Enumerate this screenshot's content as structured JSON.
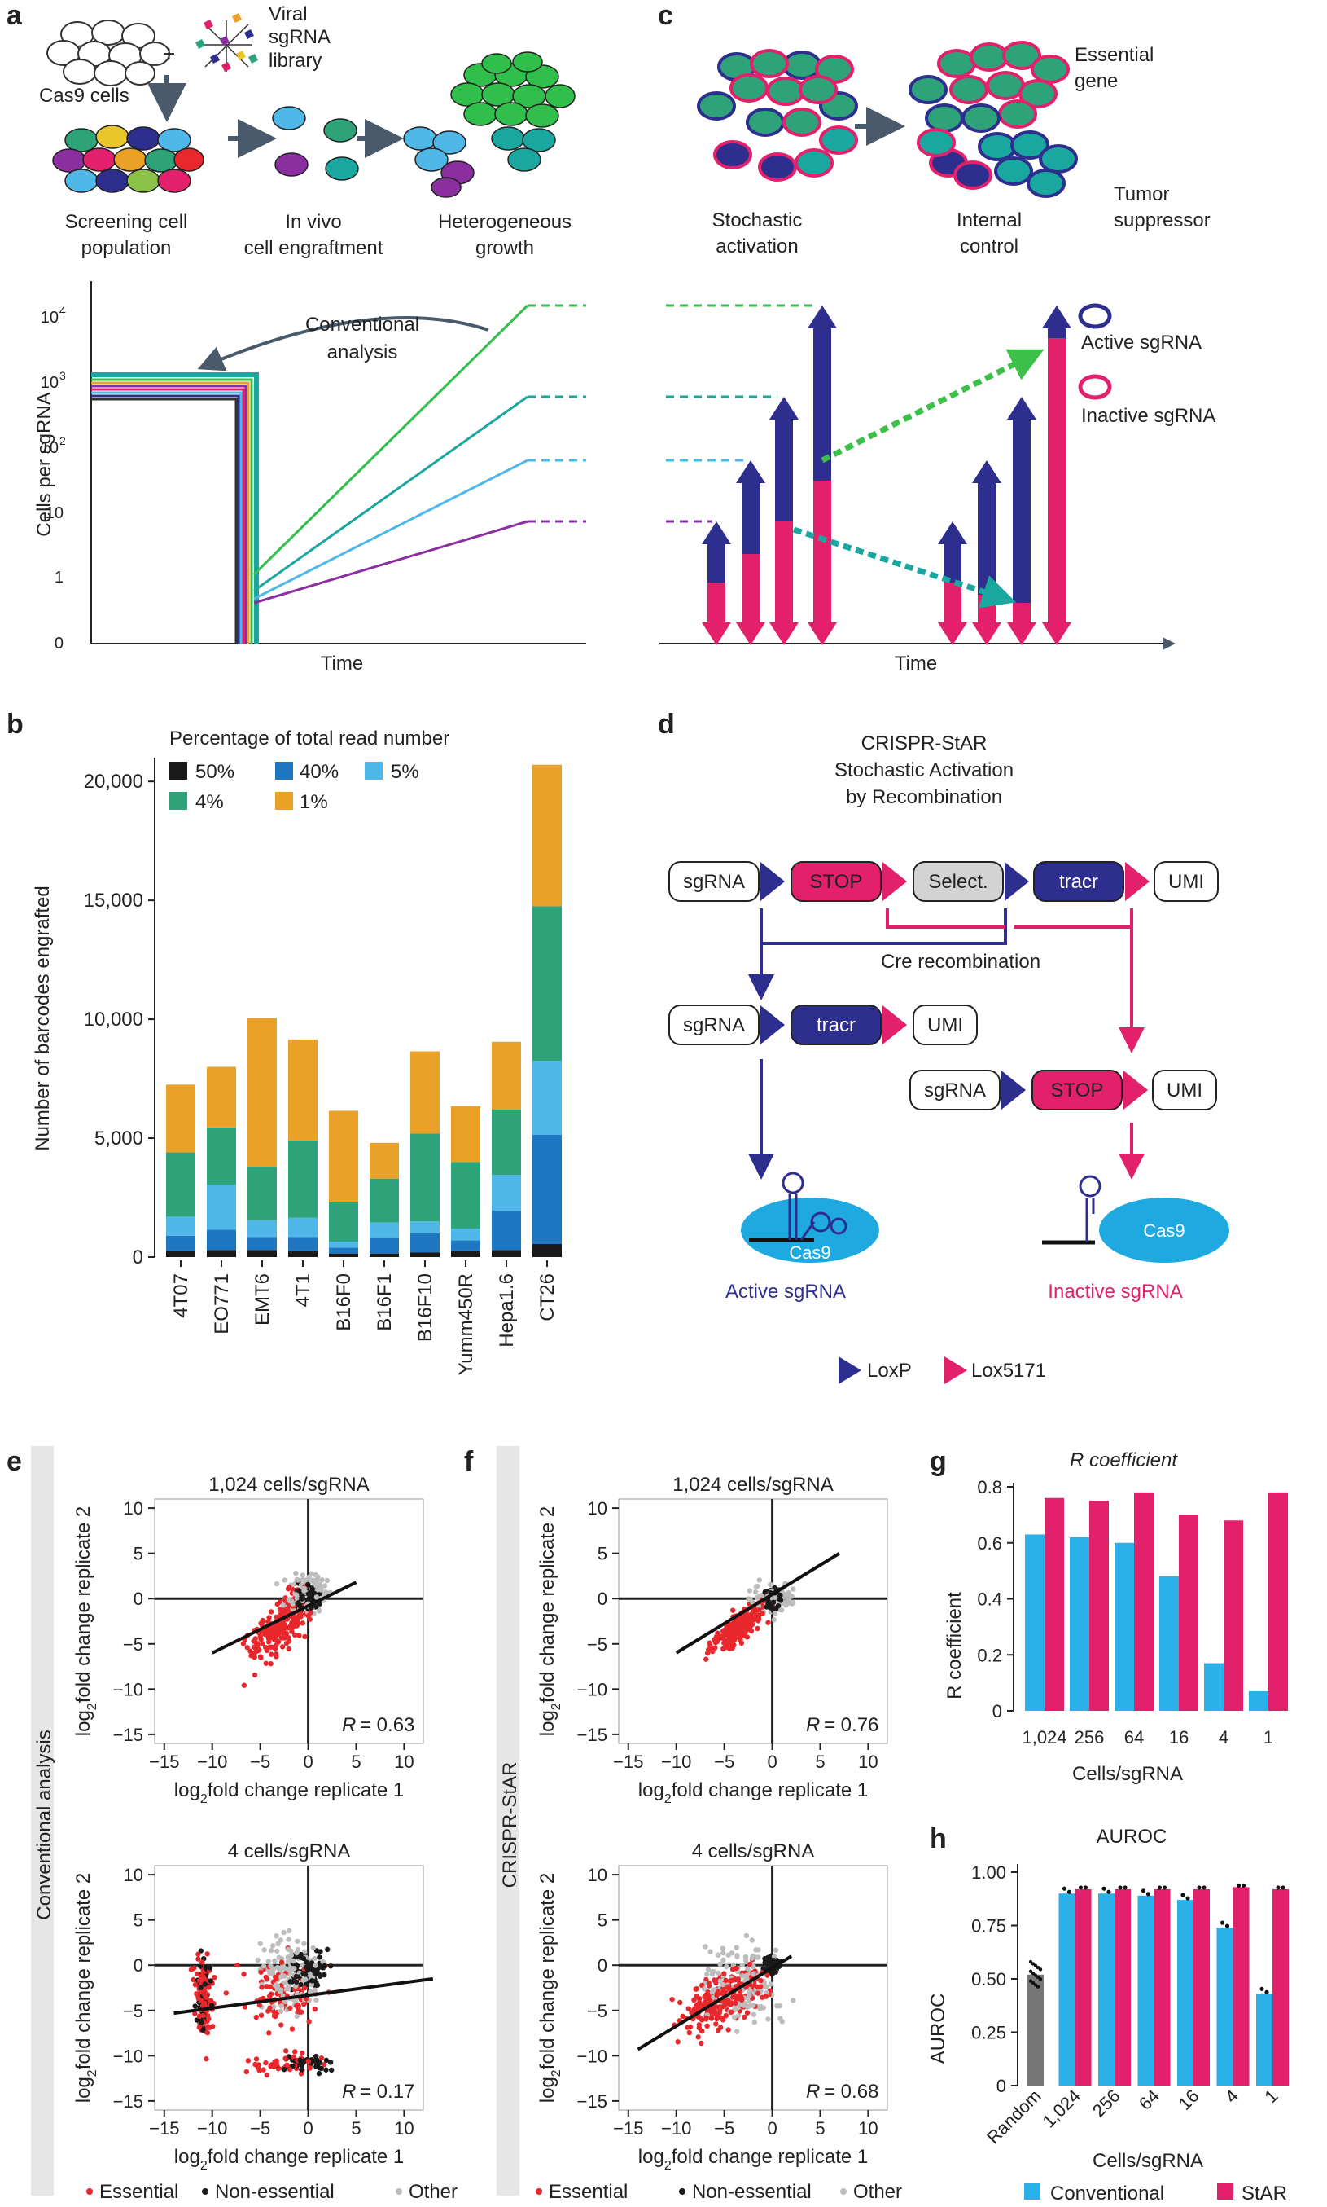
{
  "panel_letters": [
    "a",
    "b",
    "c",
    "d",
    "e",
    "f",
    "g",
    "h"
  ],
  "colors": {
    "navy": "#2e2e8f",
    "pink": "#e3206b",
    "green": "#2ea37a",
    "orange": "#e9a127",
    "lightblue": "#4fb8e8",
    "blue": "#1f77c2",
    "black": "#1a1a1a",
    "grey": "#bdbdbd",
    "red": "#e8282c"
  },
  "a": {
    "cas9_cells": "Cas9 cells",
    "plus": "+",
    "library": [
      "Viral",
      "sgRNA",
      "library"
    ],
    "screening": [
      "Screening cell",
      "population"
    ],
    "engraft": [
      "In vivo",
      "cell engraftment"
    ],
    "growth": [
      "Heterogeneous",
      "growth"
    ],
    "ylabel": "Cells per sgRNA",
    "xlabel": "Time",
    "yticks": [
      "0",
      "1",
      "10",
      "10",
      "10",
      "10"
    ],
    "yexp": [
      "",
      "",
      "",
      "2",
      "3",
      "4"
    ],
    "annot": [
      "Conventional",
      "analysis"
    ]
  },
  "c": {
    "stochastic": [
      "Stochastic",
      "activation"
    ],
    "internal": [
      "Internal",
      "control"
    ],
    "essential": [
      "Essential",
      "gene"
    ],
    "tumor": [
      "Tumor",
      "suppressor"
    ],
    "active": "Active sgRNA",
    "inactive": "Inactive sgRNA",
    "xlabel": "Time"
  },
  "b": {
    "legend_title": "Percentage of total read number",
    "legend": [
      "50%",
      "40%",
      "5%",
      "4%",
      "1%"
    ],
    "ylabel": "Number of barcodes engrafted",
    "yticks": [
      "0",
      "5,000",
      "10,000",
      "15,000",
      "20,000"
    ]
  },
  "chart_data": [
    {
      "type": "bar",
      "stacked": true,
      "categories": [
        "4T07",
        "EO771",
        "EMT6",
        "4T1",
        "B16F0",
        "B16F1",
        "B16F10",
        "Yumm450R",
        "Hepa1.6",
        "CT26"
      ],
      "series": [
        {
          "name": "50%",
          "values": [
            250,
            300,
            300,
            250,
            150,
            150,
            200,
            250,
            300,
            550
          ]
        },
        {
          "name": "40%",
          "values": [
            650,
            850,
            550,
            600,
            250,
            650,
            800,
            450,
            1650,
            4600
          ]
        },
        {
          "name": "5%",
          "values": [
            800,
            1900,
            700,
            800,
            250,
            650,
            500,
            500,
            1500,
            3100
          ]
        },
        {
          "name": "4%",
          "values": [
            2700,
            2400,
            2250,
            3250,
            1650,
            1850,
            3700,
            2800,
            2750,
            6500
          ]
        },
        {
          "name": "1%",
          "values": [
            2850,
            2550,
            6250,
            4250,
            3850,
            1500,
            3450,
            2350,
            2850,
            5950
          ]
        }
      ],
      "ylabel": "Number of barcodes engrafted",
      "ylim": [
        0,
        21000
      ]
    },
    {
      "type": "bar",
      "title": "R coefficient",
      "categories": [
        "1,024",
        "256",
        "64",
        "16",
        "4",
        "1"
      ],
      "series": [
        {
          "name": "Conventional",
          "values": [
            0.63,
            0.62,
            0.6,
            0.48,
            0.17,
            0.07
          ]
        },
        {
          "name": "StAR",
          "values": [
            0.76,
            0.75,
            0.78,
            0.7,
            0.68,
            0.78
          ]
        }
      ],
      "xlabel": "Cells/sgRNA",
      "ylabel": "R coefficient",
      "ylim": [
        0,
        0.8
      ]
    },
    {
      "type": "bar",
      "title": "AUROC",
      "categories": [
        "Random",
        "1,024",
        "256",
        "64",
        "16",
        "4",
        "1"
      ],
      "series": [
        {
          "name": "Random",
          "values": [
            0.52,
            null,
            null,
            null,
            null,
            null,
            null
          ]
        },
        {
          "name": "Conventional",
          "values": [
            null,
            0.9,
            0.9,
            0.89,
            0.87,
            0.74,
            0.43
          ]
        },
        {
          "name": "StAR",
          "values": [
            null,
            0.92,
            0.92,
            0.92,
            0.92,
            0.93,
            0.92
          ]
        }
      ],
      "xlabel": "Cells/sgRNA",
      "ylabel": "AUROC",
      "ylim": [
        0,
        1.0
      ]
    }
  ],
  "d": {
    "title": [
      "CRISPR-StAR",
      "Stochastic Activation",
      "by Recombination"
    ],
    "sgrna": "sgRNA",
    "stop": "STOP",
    "select": "Select.",
    "tracr": "tracr",
    "umi": "UMI",
    "cre": "Cre recombination",
    "cas9": "Cas9",
    "active": "Active sgRNA",
    "inactive": "Inactive sgRNA",
    "loxp": "LoxP",
    "lox5171": "Lox5171"
  },
  "e": {
    "side": "Conventional analysis",
    "top_title": "1,024 cells/sgRNA",
    "top_r": "= 0.63",
    "bot_title": "4 cells/sgRNA",
    "bot_r": "= 0.17"
  },
  "f": {
    "side": "CRISPR-StAR",
    "top_title": "1,024 cells/sgRNA",
    "top_r": "= 0.76",
    "bot_title": "4 cells/sgRNA",
    "bot_r": "= 0.68"
  },
  "scatter": {
    "ylab_main": "log",
    "ylab_sub": "2",
    "ylab_rest": "fold change replicate 2",
    "xlab_main": "log",
    "xlab_sub": "2",
    "xlab_rest": "fold change replicate 1",
    "xticks": [
      "−15",
      "−10",
      "−5",
      "0",
      "5",
      "10"
    ],
    "yticks": [
      "10",
      "5",
      "0",
      "−5",
      "−10",
      "−15"
    ],
    "r": "R",
    "legend": [
      "Essential",
      "Non-essential",
      "Other"
    ]
  },
  "g": {
    "title": "R coefficient",
    "ylabel": "R coefficient",
    "xlabel": "Cells/sgRNA",
    "yticks": [
      "0",
      "0.2",
      "0.4",
      "0.6",
      "0.8"
    ],
    "cats": [
      "1,024",
      "256",
      "64",
      "16",
      "4",
      "1"
    ]
  },
  "h": {
    "title": "AUROC",
    "ylabel": "AUROC",
    "xlabel": "Cells/sgRNA",
    "yticks": [
      "0",
      "0.25",
      "0.50",
      "0.75",
      "1.00"
    ],
    "cats": [
      "Random",
      "1,024",
      "256",
      "64",
      "16",
      "4",
      "1"
    ],
    "legend": [
      "Conventional",
      "StAR"
    ]
  }
}
